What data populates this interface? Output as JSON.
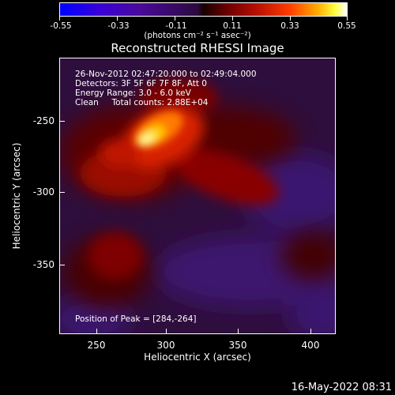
{
  "colorbar": {
    "ticks": [
      "-0.55",
      "-0.33",
      "-0.11",
      "0.11",
      "0.33",
      "0.55"
    ],
    "units": "(photons cm⁻² s⁻¹ asec⁻²)"
  },
  "title": "Reconstructed RHESSI Image",
  "info": {
    "time": "26-Nov-2012 02:47:20.000 to 02:49:04.000",
    "detectors": "Detectors: 3F 5F 6F 7F 8F, Att 0",
    "energy": "Energy Range: 3.0 - 6.0 keV",
    "clean": "Clean     Total counts: 2.88E+04",
    "peak": "Position of Peak = [284,-264]"
  },
  "axes": {
    "xlabel": "Heliocentric X (arcsec)",
    "ylabel": "Heliocentric Y (arcsec)",
    "xticks": [
      "250",
      "300",
      "350",
      "400"
    ],
    "yticks": [
      "-250",
      "-300",
      "-350"
    ]
  },
  "date_stamp": "16-May-2022 08:31"
}
